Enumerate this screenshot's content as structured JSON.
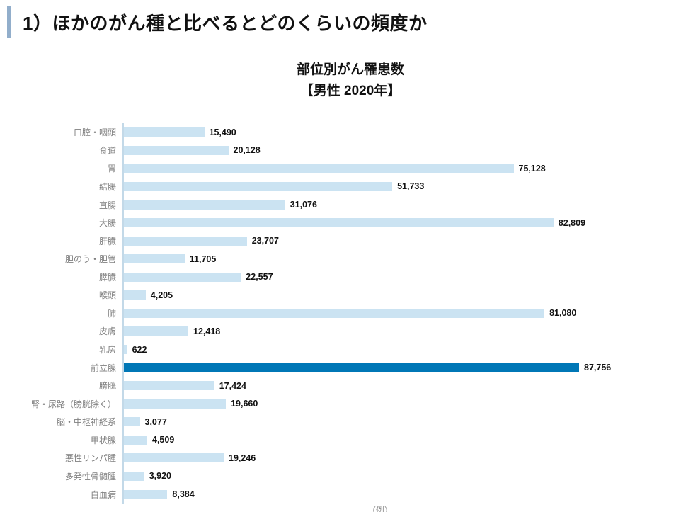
{
  "header": {
    "title": "1）ほかのがん種と比べるとどのくらいの頻度か"
  },
  "chart": {
    "title_line1": "部位別がん罹患数",
    "title_line2": "【男性 2020年】",
    "unit_label": "（例）"
  },
  "colors": {
    "bar": "#cbe3f2",
    "highlight_bar": "#0077b6",
    "accent_bar": "#92aecb",
    "axis_line": "#c3d9e8",
    "category_text": "#808080",
    "value_text": "#111111"
  },
  "chart_data": {
    "type": "bar",
    "orientation": "horizontal",
    "title": "部位別がん罹患数【男性 2020年】",
    "xlabel": "（例）",
    "ylabel": "",
    "xlim": [
      0,
      90000
    ],
    "grid": false,
    "legend": "none",
    "categories": [
      "口腔・咽頭",
      "食道",
      "胃",
      "結腸",
      "直腸",
      "大腸",
      "肝臓",
      "胆のう・胆管",
      "膵臓",
      "喉頭",
      "肺",
      "皮膚",
      "乳房",
      "前立腺",
      "膀胱",
      "腎・尿路（膀胱除く）",
      "脳・中枢神経系",
      "甲状腺",
      "悪性リンパ腫",
      "多発性骨髄腫",
      "白血病"
    ],
    "values": [
      15490,
      20128,
      75128,
      51733,
      31076,
      82809,
      23707,
      11705,
      22557,
      4205,
      81080,
      12418,
      622,
      87756,
      17424,
      19660,
      3077,
      4509,
      19246,
      3920,
      8384
    ],
    "value_labels": [
      "15,490",
      "20,128",
      "75,128",
      "51,733",
      "31,076",
      "82,809",
      "23,707",
      "11,705",
      "22,557",
      "4,205",
      "81,080",
      "12,418",
      "622",
      "87,756",
      "17,424",
      "19,660",
      "3,077",
      "4,509",
      "19,246",
      "3,920",
      "8,384"
    ],
    "highlight_category": "前立腺",
    "highlight_index": 13
  }
}
